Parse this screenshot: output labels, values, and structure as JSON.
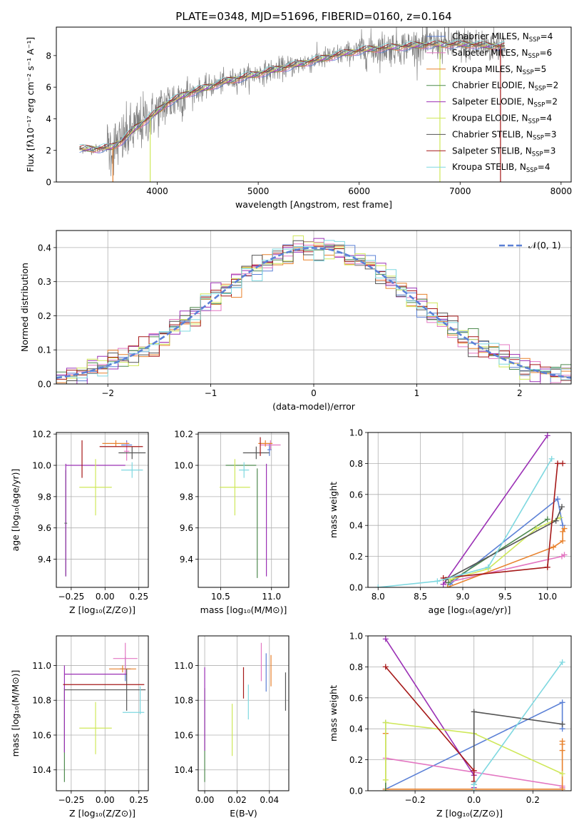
{
  "figure_title": "PLATE=0348, MJD=51696, FIBERID=0160, z=0.164",
  "colors": {
    "Chabrier MILES": "#5b80d6",
    "Salpeter MILES": "#e377c2",
    "Kroupa MILES": "#e8812c",
    "Chabrier ELODIE": "#4f8a4f",
    "Salpeter ELODIE": "#9b30b5",
    "Kroupa ELODIE": "#cfe85a",
    "Chabrier STELIB": "#555555",
    "Salpeter STELIB": "#a51818",
    "Kroupa STELIB": "#7fd8e0",
    "data": "#808080"
  },
  "chart_data": [
    {
      "id": "spectrum",
      "type": "line",
      "title": "PLATE=0348, MJD=51696, FIBERID=0160, z=0.164",
      "xlabel": "wavelength [Angstrom, rest frame]",
      "ylabel": "Flux [fλ10⁻¹⁷ erg cm⁻² s⁻¹ A⁻¹]",
      "xlim": [
        3000,
        8100
      ],
      "ylim": [
        0,
        9.8
      ],
      "xticks": [
        4000,
        5000,
        6000,
        7000,
        8000
      ],
      "yticks": [
        0,
        2,
        4,
        6,
        8
      ],
      "legend_loc": "right",
      "legend": [
        {
          "name": "Chabrier MILES",
          "nssp": "4"
        },
        {
          "name": "Salpeter MILES",
          "nssp": "6"
        },
        {
          "name": "Kroupa MILES",
          "nssp": "5"
        },
        {
          "name": "Chabrier ELODIE",
          "nssp": "2"
        },
        {
          "name": "Salpeter ELODIE",
          "nssp": "2"
        },
        {
          "name": "Kroupa ELODIE",
          "nssp": "4"
        },
        {
          "name": "Chabrier STELIB",
          "nssp": "3"
        },
        {
          "name": "Salpeter STELIB",
          "nssp": "3"
        },
        {
          "name": "Kroupa STELIB",
          "nssp": "4"
        }
      ],
      "continuum": {
        "x": [
          3230,
          3400,
          3550,
          3650,
          3800,
          3950,
          4100,
          4300,
          4500,
          4700,
          4900,
          5100,
          5300,
          5500,
          5700,
          5900,
          6100,
          6300,
          6500,
          6700,
          6900,
          7100,
          7300,
          7450
        ],
        "y": [
          2.1,
          2.1,
          2.2,
          2.6,
          3.5,
          4.2,
          5.0,
          5.6,
          6.0,
          6.4,
          6.7,
          7.0,
          7.3,
          7.6,
          7.9,
          8.2,
          8.4,
          8.5,
          8.6,
          8.7,
          8.7,
          8.7,
          8.6,
          8.6
        ]
      }
    },
    {
      "id": "residuals",
      "type": "line",
      "xlabel": "(data-model)/error",
      "ylabel": "Normed distribution",
      "xlim": [
        -2.5,
        2.5
      ],
      "ylim": [
        0,
        0.45
      ],
      "xticks": [
        -2,
        -1,
        0,
        1,
        2
      ],
      "yticks": [
        0.0,
        0.1,
        0.2,
        0.3,
        0.4
      ],
      "legend": "𝒩(0, 1)",
      "legend_loc": "upper right",
      "grid": true,
      "model": "normal pdf, mean 0, sigma 1"
    },
    {
      "id": "age_vs_Z",
      "type": "scatter",
      "xlabel": "Z [log₁₀(Z/Z⊙)]",
      "ylabel": "age  [log₁₀(age/yr)]",
      "xlim": [
        -0.36,
        0.32
      ],
      "ylim": [
        9.22,
        10.21
      ],
      "xticks": [
        -0.25,
        0.0,
        0.25
      ],
      "yticks": [
        9.4,
        9.6,
        9.8,
        10.0,
        10.2
      ],
      "grid": true,
      "points": [
        {
          "model": "Chabrier MILES",
          "x": 0.16,
          "xerr": 0.04,
          "y": 10.13,
          "yerr": 0.03
        },
        {
          "model": "Salpeter MILES",
          "x": 0.16,
          "xerr": 0.02,
          "y": 10.09,
          "yerr": 0.06
        },
        {
          "model": "Kroupa MILES",
          "x": 0.08,
          "xerr": 0.1,
          "y": 10.14,
          "yerr": 0.02
        },
        {
          "model": "Chabrier ELODIE",
          "x": -0.29,
          "xerr": 0.01,
          "y": 9.63,
          "yerr": 0.34
        },
        {
          "model": "Salpeter ELODIE",
          "x": -0.07,
          "xerr": 0.22,
          "y": 10.0,
          "yerr": 0.0
        },
        {
          "model": "Salpeter ELODIE",
          "x": -0.29,
          "xerr": 0.0,
          "y": 9.65,
          "yerr": 0.36
        },
        {
          "model": "Kroupa ELODIE",
          "x": -0.07,
          "xerr": 0.12,
          "y": 9.86,
          "yerr": 0.18
        },
        {
          "model": "Chabrier STELIB",
          "x": 0.2,
          "xerr": 0.1,
          "y": 10.08,
          "yerr": 0.04
        },
        {
          "model": "Salpeter STELIB",
          "x": 0.12,
          "xerr": 0.16,
          "y": 10.12,
          "yerr": 0.0
        },
        {
          "model": "Salpeter STELIB",
          "x": -0.17,
          "xerr": 0.0,
          "y": 10.04,
          "yerr": 0.12
        },
        {
          "model": "Kroupa STELIB",
          "x": 0.2,
          "xerr": 0.08,
          "y": 9.97,
          "yerr": 0.05
        }
      ]
    },
    {
      "id": "age_vs_mass",
      "type": "scatter",
      "xlabel": "mass [log₁₀(M/M⊙)]",
      "xlim": [
        10.28,
        11.17
      ],
      "ylim": [
        9.22,
        10.21
      ],
      "xticks": [
        10.5,
        11.0
      ],
      "yticks": [
        9.4,
        9.6,
        9.8,
        10.0,
        10.2
      ],
      "grid": true,
      "points": [
        {
          "model": "Chabrier MILES",
          "x": 10.98,
          "xerr": 0.02,
          "y": 10.1,
          "yerr": 0.04
        },
        {
          "model": "Salpeter MILES",
          "x": 10.99,
          "xerr": 0.1,
          "y": 10.13,
          "yerr": 0.03
        },
        {
          "model": "Kroupa MILES",
          "x": 10.94,
          "xerr": 0.07,
          "y": 10.14,
          "yerr": 0.02
        },
        {
          "model": "Chabrier ELODIE",
          "x": 10.86,
          "xerr": 0.0,
          "y": 9.63,
          "yerr": 0.35
        },
        {
          "model": "Chabrier ELODIE",
          "x": 10.7,
          "xerr": 0.15,
          "y": 10.0,
          "yerr": 0.0
        },
        {
          "model": "Salpeter ELODIE",
          "x": 10.95,
          "xerr": 0.0,
          "y": 9.65,
          "yerr": 0.36
        },
        {
          "model": "Kroupa ELODIE",
          "x": 10.64,
          "xerr": 0.15,
          "y": 9.86,
          "yerr": 0.18
        },
        {
          "model": "Chabrier STELIB",
          "x": 10.85,
          "xerr": 0.13,
          "y": 10.08,
          "yerr": 0.04
        },
        {
          "model": "Salpeter STELIB",
          "x": 10.89,
          "xerr": 0.0,
          "y": 10.12,
          "yerr": 0.06
        },
        {
          "model": "Kroupa STELIB",
          "x": 10.73,
          "xerr": 0.05,
          "y": 9.97,
          "yerr": 0.05
        }
      ]
    },
    {
      "id": "weight_vs_age",
      "type": "line",
      "xlabel": "age  [log₁₀(age/yr)]",
      "ylabel": "mass weight",
      "xlim": [
        7.88,
        10.28
      ],
      "ylim": [
        0,
        1
      ],
      "xticks": [
        8.0,
        8.5,
        9.0,
        9.5,
        10.0
      ],
      "yticks": [
        0.0,
        0.2,
        0.4,
        0.6,
        0.8,
        1.0
      ],
      "grid": true,
      "series": [
        {
          "model": "Chabrier MILES",
          "x": [
            8.85,
            10.12,
            10.18
          ],
          "y": [
            0.02,
            0.57,
            0.4
          ]
        },
        {
          "model": "Salpeter MILES",
          "x": [
            8.8,
            10.17,
            10.2
          ],
          "y": [
            0.03,
            0.2,
            0.21
          ]
        },
        {
          "model": "Kroupa MILES",
          "x": [
            8.82,
            10.07,
            10.18,
            10.18,
            10.2
          ],
          "y": [
            0.0,
            0.26,
            0.3,
            0.36,
            0.38
          ]
        },
        {
          "model": "Chabrier ELODIE",
          "x": [
            8.83,
            10.0
          ],
          "y": [
            0.03,
            0.44
          ]
        },
        {
          "model": "Salpeter ELODIE",
          "x": [
            8.77,
            10.0
          ],
          "y": [
            0.02,
            0.98
          ]
        },
        {
          "model": "Kroupa ELODIE",
          "x": [
            8.85,
            9.3,
            9.87,
            10.15
          ],
          "y": [
            0.05,
            0.12,
            0.38,
            0.45
          ]
        },
        {
          "model": "Chabrier STELIB",
          "x": [
            8.8,
            10.1,
            10.17
          ],
          "y": [
            0.05,
            0.43,
            0.52
          ]
        },
        {
          "model": "Salpeter STELIB",
          "x": [
            8.77,
            10.0,
            10.12,
            10.18
          ],
          "y": [
            0.06,
            0.13,
            0.8,
            0.8
          ]
        },
        {
          "model": "Kroupa STELIB",
          "x": [
            8.0,
            8.7,
            9.3,
            10.05
          ],
          "y": [
            0.0,
            0.04,
            0.13,
            0.83
          ]
        }
      ]
    },
    {
      "id": "mass_vs_Z",
      "type": "scatter",
      "xlabel": "Z [log₁₀(Z/Z⊙)]",
      "ylabel": "mass [log₁₀(M/M⊙)]",
      "xlim": [
        -0.36,
        0.32
      ],
      "ylim": [
        10.28,
        11.17
      ],
      "xticks": [
        -0.25,
        0.0,
        0.25
      ],
      "yticks": [
        10.4,
        10.6,
        10.8,
        11.0
      ],
      "grid": true,
      "points": [
        {
          "model": "Chabrier MILES",
          "x": 0.15,
          "xerr": 0.04,
          "y": 10.98,
          "yerr": 0.07
        },
        {
          "model": "Salpeter MILES",
          "x": 0.15,
          "xerr": 0.09,
          "y": 11.04,
          "yerr": 0.09
        },
        {
          "model": "Kroupa MILES",
          "x": 0.13,
          "xerr": 0.1,
          "y": 10.98,
          "yerr": 0.02
        },
        {
          "model": "Chabrier ELODIE",
          "x": -0.3,
          "xerr": 0.0,
          "y": 10.6,
          "yerr": 0.27
        },
        {
          "model": "Salpeter ELODIE",
          "x": -0.07,
          "xerr": 0.23,
          "y": 10.95,
          "yerr": 0.0
        },
        {
          "model": "Salpeter ELODIE",
          "x": -0.3,
          "xerr": 0.0,
          "y": 10.75,
          "yerr": 0.25
        },
        {
          "model": "Kroupa ELODIE",
          "x": -0.07,
          "xerr": 0.12,
          "y": 10.64,
          "yerr": 0.15
        },
        {
          "model": "Chabrier STELIB",
          "x": 0.0,
          "xerr": 0.3,
          "y": 10.86,
          "yerr": 0.0
        },
        {
          "model": "Chabrier STELIB",
          "x": 0.16,
          "xerr": 0.0,
          "y": 10.86,
          "yerr": 0.12
        },
        {
          "model": "Salpeter STELIB",
          "x": -0.01,
          "xerr": 0.3,
          "y": 10.89,
          "yerr": 0.0
        },
        {
          "model": "Kroupa STELIB",
          "x": 0.21,
          "xerr": 0.08,
          "y": 10.73,
          "yerr": 0.0
        },
        {
          "model": "Kroupa STELIB",
          "x": 0.26,
          "xerr": 0.0,
          "y": 10.8,
          "yerr": 0.08
        }
      ]
    },
    {
      "id": "mass_vs_ebv",
      "type": "scatter",
      "xlabel": "E(B-V)",
      "xlim": [
        -0.004,
        0.052
      ],
      "ylim": [
        10.28,
        11.17
      ],
      "xticks": [
        0.0,
        0.02,
        0.04
      ],
      "yticks": [
        10.4,
        10.6,
        10.8,
        11.0
      ],
      "grid": true,
      "points": [
        {
          "model": "Chabrier ELODIE",
          "x": 0.0,
          "y": 10.6,
          "yerr": 0.27
        },
        {
          "model": "Salpeter ELODIE",
          "x": 0.0,
          "y": 10.75,
          "yerr": 0.24
        },
        {
          "model": "Kroupa ELODIE",
          "x": 0.017,
          "y": 10.63,
          "yerr": 0.15
        },
        {
          "model": "Salpeter STELIB",
          "x": 0.024,
          "y": 10.9,
          "yerr": 0.09
        },
        {
          "model": "Kroupa STELIB",
          "x": 0.027,
          "y": 10.79,
          "yerr": 0.1
        },
        {
          "model": "Salpeter MILES",
          "x": 0.035,
          "y": 11.02,
          "yerr": 0.11
        },
        {
          "model": "Chabrier MILES",
          "x": 0.038,
          "y": 10.96,
          "yerr": 0.11
        },
        {
          "model": "Kroupa MILES",
          "x": 0.041,
          "y": 10.97,
          "yerr": 0.09
        },
        {
          "model": "Chabrier STELIB",
          "x": 0.05,
          "y": 10.85,
          "yerr": 0.11
        }
      ]
    },
    {
      "id": "weight_vs_Z",
      "type": "line",
      "xlabel": "Z [log₁₀(Z/Z⊙)]",
      "ylabel": "mass weight",
      "xlim": [
        -0.36,
        0.33
      ],
      "ylim": [
        0,
        1
      ],
      "xticks": [
        -0.2,
        0.0,
        0.2
      ],
      "yticks": [
        0.0,
        0.2,
        0.4,
        0.6,
        0.8,
        1.0
      ],
      "grid": true,
      "series": [
        {
          "model": "Chabrier MILES",
          "x": [
            -0.3,
            0.3,
            0.3
          ],
          "y": [
            0.01,
            0.57,
            0.4
          ]
        },
        {
          "model": "Salpeter MILES",
          "x": [
            -0.3,
            0.3,
            0.3
          ],
          "y": [
            0.21,
            0.03,
            0.02
          ]
        },
        {
          "model": "Kroupa MILES",
          "x": [
            -0.3,
            -0.3,
            0.3,
            0.3,
            0.3,
            0.3
          ],
          "y": [
            0.37,
            0.01,
            0.01,
            0.26,
            0.3,
            0.32
          ]
        },
        {
          "model": "Chabrier ELODIE",
          "x": [
            -0.3,
            -0.3
          ],
          "y": [
            0.44,
            0.0
          ]
        },
        {
          "model": "Salpeter ELODIE",
          "x": [
            -0.3,
            0.0,
            0.0
          ],
          "y": [
            0.98,
            0.1,
            0.02
          ]
        },
        {
          "model": "Kroupa ELODIE",
          "x": [
            -0.3,
            -0.3,
            0.0,
            0.3
          ],
          "y": [
            0.07,
            0.44,
            0.37,
            0.11
          ]
        },
        {
          "model": "Chabrier STELIB",
          "x": [
            0.0,
            0.0,
            0.3
          ],
          "y": [
            0.04,
            0.51,
            0.43
          ]
        },
        {
          "model": "Salpeter STELIB",
          "x": [
            -0.3,
            0.0,
            0.0
          ],
          "y": [
            0.8,
            0.13,
            0.06
          ]
        },
        {
          "model": "Kroupa STELIB",
          "x": [
            0.0,
            0.0,
            0.3
          ],
          "y": [
            0.0,
            0.04,
            0.83
          ]
        }
      ]
    }
  ]
}
